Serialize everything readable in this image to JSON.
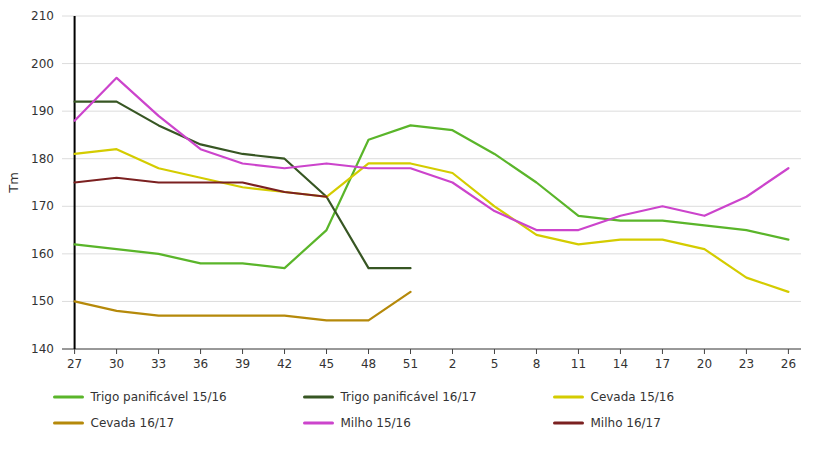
{
  "chart_data": {
    "type": "line",
    "categories": [
      "27",
      "30",
      "33",
      "36",
      "39",
      "42",
      "45",
      "48",
      "51",
      "2",
      "5",
      "8",
      "11",
      "14",
      "17",
      "20",
      "23",
      "26"
    ],
    "series": [
      {
        "name": "Trigo panificável 15/16",
        "color": "#5ab52a",
        "values": [
          162,
          161,
          160,
          158,
          158,
          157,
          165,
          184,
          187,
          186,
          181,
          175,
          168,
          167,
          167,
          166,
          165,
          163
        ]
      },
      {
        "name": "Trigo panificável 16/17",
        "color": "#375623",
        "values": [
          192,
          192,
          187,
          183,
          181,
          180,
          172,
          157,
          157,
          null,
          null,
          null,
          null,
          null,
          null,
          null,
          null,
          null
        ]
      },
      {
        "name": "Cevada 15/16",
        "color": "#d4cc00",
        "values": [
          181,
          182,
          178,
          176,
          174,
          173,
          172,
          179,
          179,
          177,
          170,
          164,
          162,
          163,
          163,
          161,
          155,
          152
        ]
      },
      {
        "name": "Cevada 16/17",
        "color": "#b5890a",
        "values": [
          150,
          148,
          147,
          147,
          147,
          147,
          146,
          146,
          152,
          null,
          null,
          null,
          null,
          null,
          null,
          null,
          null,
          null
        ]
      },
      {
        "name": "Milho 15/16",
        "color": "#cc44cc",
        "values": [
          188,
          197,
          189,
          182,
          179,
          178,
          179,
          178,
          178,
          175,
          169,
          165,
          165,
          168,
          170,
          168,
          172,
          178
        ]
      },
      {
        "name": "Milho 16/17",
        "color": "#7b2020",
        "values": [
          175,
          176,
          175,
          175,
          175,
          173,
          172,
          null,
          null,
          null,
          null,
          null,
          null,
          null,
          null,
          null,
          null,
          null
        ]
      }
    ],
    "y_label": "Tm",
    "ylim": [
      140,
      210
    ],
    "yticks": [
      140,
      150,
      160,
      170,
      180,
      190,
      200,
      210
    ],
    "grid": true,
    "legend": "bottom"
  }
}
